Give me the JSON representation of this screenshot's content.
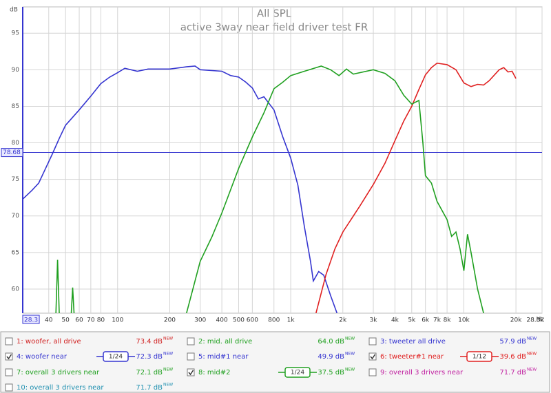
{
  "chart_data": {
    "type": "line",
    "title": "All SPL",
    "subtitle": "active 3way near field driver test FR",
    "y_unit": "dB",
    "x_unit": "Hz",
    "log_x": true,
    "grid": true,
    "cursor_level": 78.68,
    "xlim": [
      28.3,
      28300
    ],
    "ylim": [
      56.7,
      98.6
    ],
    "xticks": [
      28.3,
      40,
      50,
      60,
      70,
      80,
      100,
      200,
      300,
      400,
      500,
      600,
      800,
      {
        "value": 1000,
        "label": "1k"
      },
      {
        "value": 2000,
        "label": "2k"
      },
      {
        "value": 3000,
        "label": "3k"
      },
      {
        "value": 4000,
        "label": "4k"
      },
      {
        "value": 5000,
        "label": "5k"
      },
      {
        "value": 6000,
        "label": "6k"
      },
      {
        "value": 7000,
        "label": "7k"
      },
      {
        "value": 8000,
        "label": "8k"
      },
      {
        "value": 10000,
        "label": "10k"
      },
      {
        "value": 20000,
        "label": "20k"
      },
      {
        "value": 28300,
        "label": "28.3k"
      }
    ],
    "yticks": [
      60,
      65,
      70,
      75,
      80,
      85,
      90,
      95
    ],
    "badge": "NEW",
    "series": [
      {
        "name": "1: woofer, all drive",
        "color": "#d02020",
        "checked": false,
        "level": "73.4 dB"
      },
      {
        "name": "2: mid. all drive",
        "color": "#20a020",
        "checked": false,
        "level": "64.0 dB"
      },
      {
        "name": "3: tweeter all drive",
        "color": "#3535d0",
        "checked": false,
        "level": "57.9 dB"
      },
      {
        "name": "4: woofer near",
        "color": "#3535d0",
        "checked": true,
        "level": "72.3 dB",
        "smoothing": "1/24",
        "x": [
          28.3,
          32,
          35,
          38,
          42,
          46,
          50,
          60,
          70,
          80,
          90,
          100,
          110,
          130,
          150,
          200,
          250,
          280,
          300,
          400,
          450,
          500,
          550,
          600,
          650,
          700,
          800,
          900,
          1000,
          1100,
          1200,
          1300,
          1350,
          1450,
          1550,
          1700,
          1850
        ],
        "values": [
          72.3,
          73.5,
          74.5,
          76.3,
          78.5,
          80.6,
          82.4,
          84.5,
          86.4,
          88.1,
          89,
          89.6,
          90.2,
          89.8,
          90.1,
          90.1,
          90.4,
          90.5,
          90,
          89.8,
          89.2,
          89,
          88.3,
          87.5,
          86,
          86.3,
          84.5,
          80.8,
          77.9,
          74.2,
          68.5,
          63.8,
          61.1,
          62.4,
          61.9,
          59.1,
          56.7
        ]
      },
      {
        "name": "5: mid#1 near",
        "color": "#3535d0",
        "checked": false,
        "level": "49.9 dB"
      },
      {
        "name": "6: tweeter#1 near",
        "color": "#e02020",
        "checked": true,
        "level": "39.6 dB",
        "smoothing": "1/12",
        "x": [
          1400,
          1600,
          1800,
          2000,
          2500,
          3000,
          3500,
          4000,
          4500,
          5000,
          5500,
          6000,
          6500,
          7000,
          8000,
          9000,
          10000,
          11000,
          12000,
          13000,
          14000,
          16000,
          17000,
          18000,
          19000,
          20000
        ],
        "values": [
          56.7,
          62,
          65.5,
          67.8,
          71.3,
          74.3,
          77.2,
          80.3,
          83,
          85,
          87.3,
          89.3,
          90.3,
          90.9,
          90.7,
          90,
          88.2,
          87.7,
          88,
          87.9,
          88.5,
          90,
          90.3,
          89.7,
          89.8,
          88.8
        ]
      },
      {
        "name": "7: overall 3 drivers near",
        "color": "#20a020",
        "checked": false,
        "level": "72.1 dB"
      },
      {
        "name": "8: mid#2",
        "color": "#20a020",
        "checked": true,
        "level": "37.5 dB",
        "smoothing": "1/24",
        "x": [
          44,
          45,
          46,
          47,
          54,
          55,
          56,
          57,
          250,
          300,
          350,
          400,
          500,
          600,
          700,
          800,
          900,
          1000,
          1200,
          1500,
          1700,
          1900,
          2100,
          2300,
          3000,
          3500,
          4000,
          4500,
          5000,
          5500,
          5800,
          6000,
          6500,
          7000,
          8000,
          8500,
          9000,
          9500,
          10000,
          10500,
          11000,
          12000,
          13000
        ],
        "values": [
          56.7,
          64,
          56.7,
          null,
          56.7,
          60.2,
          56.7,
          null,
          56.7,
          63.8,
          67.1,
          70.4,
          76.5,
          80.8,
          84.1,
          87.4,
          88.3,
          89.2,
          89.8,
          90.5,
          90,
          89.2,
          90.1,
          89.4,
          90,
          89.5,
          88.5,
          86.5,
          85.3,
          85.8,
          80,
          75.5,
          74.5,
          72,
          69.5,
          67.2,
          67.8,
          65.5,
          62.5,
          67.5,
          65,
          60,
          56.7
        ]
      },
      {
        "name": "9: overall 3 drivers near",
        "color": "#c020a0",
        "checked": false,
        "level": "71.7 dB"
      },
      {
        "name": "10: overall 3 drivers near",
        "color": "#2090b0",
        "checked": false,
        "level": "71.7 dB"
      }
    ]
  }
}
